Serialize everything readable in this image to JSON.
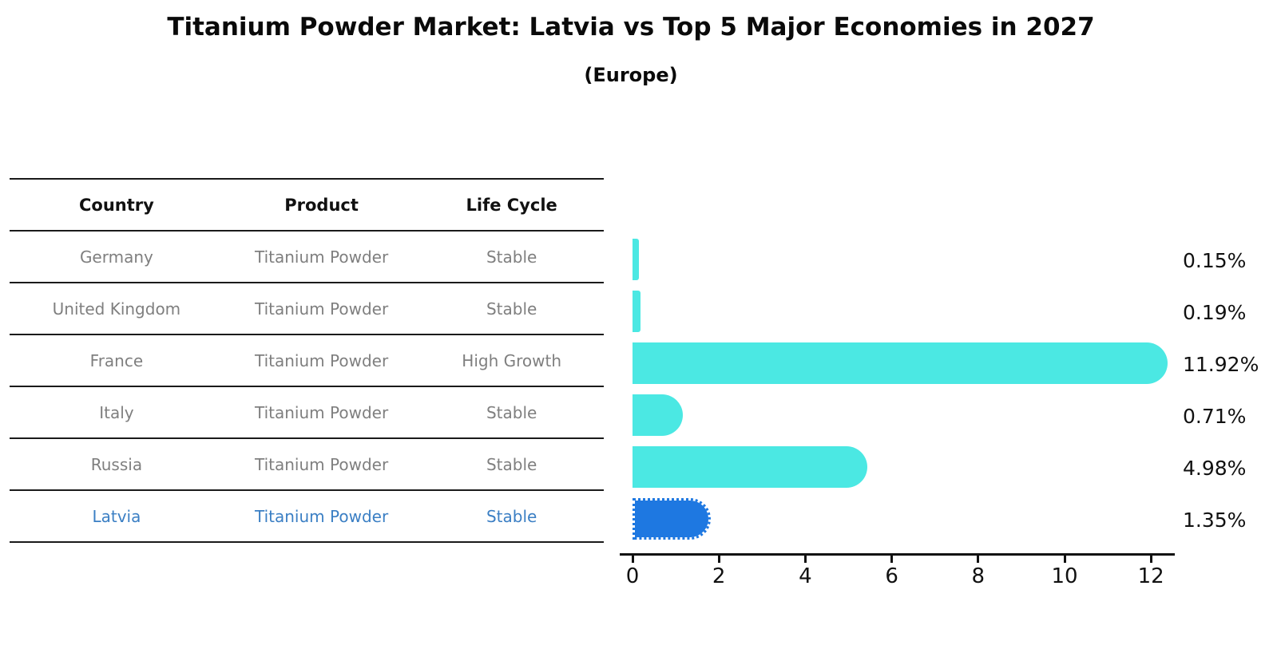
{
  "title": "Titanium Powder Market: Latvia vs Top 5 Major Economies in 2027",
  "subtitle": "(Europe)",
  "table": {
    "headers": [
      "Country",
      "Product",
      "Life Cycle"
    ],
    "rows": [
      {
        "country": "Germany",
        "product": "Titanium Powder",
        "life_cycle": "Stable",
        "highlight": false
      },
      {
        "country": "United Kingdom",
        "product": "Titanium Powder",
        "life_cycle": "Stable",
        "highlight": false
      },
      {
        "country": "France",
        "product": "Titanium Powder",
        "life_cycle": "High Growth",
        "highlight": false
      },
      {
        "country": "Italy",
        "product": "Titanium Powder",
        "life_cycle": "Stable",
        "highlight": false
      },
      {
        "country": "Russia",
        "product": "Titanium Powder",
        "life_cycle": "Stable",
        "highlight": false
      },
      {
        "country": "Latvia",
        "product": "Titanium Powder",
        "life_cycle": "Stable",
        "highlight": true
      }
    ]
  },
  "chart_data": {
    "type": "bar",
    "orientation": "horizontal",
    "title": "Titanium Powder Market: Latvia vs Top 5 Major Economies in 2027 (Europe)",
    "categories": [
      "Germany",
      "United Kingdom",
      "France",
      "Italy",
      "Russia",
      "Latvia"
    ],
    "values": [
      0.15,
      0.19,
      11.92,
      0.71,
      4.98,
      1.35
    ],
    "value_labels": [
      "0.15%",
      "0.19%",
      "11.92%",
      "0.71%",
      "4.98%",
      "1.35%"
    ],
    "unit": "%",
    "xlim": [
      0,
      12.55
    ],
    "xticks": [
      0,
      2,
      4,
      6,
      8,
      10,
      12
    ],
    "xtick_labels": [
      "0",
      "2",
      "4",
      "6",
      "8",
      "10",
      "12"
    ],
    "grid": false,
    "legend": false,
    "highlight_category": "Latvia",
    "colors": {
      "bar": "#4BE8E3",
      "highlight_bar": "#1E78E1"
    }
  },
  "colors": {
    "background": "#ffffff",
    "title_text": "#0a0a0a",
    "header_text": "#111111",
    "row_text": "#7f7f7f",
    "highlight_text": "#3B7FC4",
    "table_line": "#1a1a1a",
    "axis": "#111111",
    "value_label_text": "#111111"
  }
}
